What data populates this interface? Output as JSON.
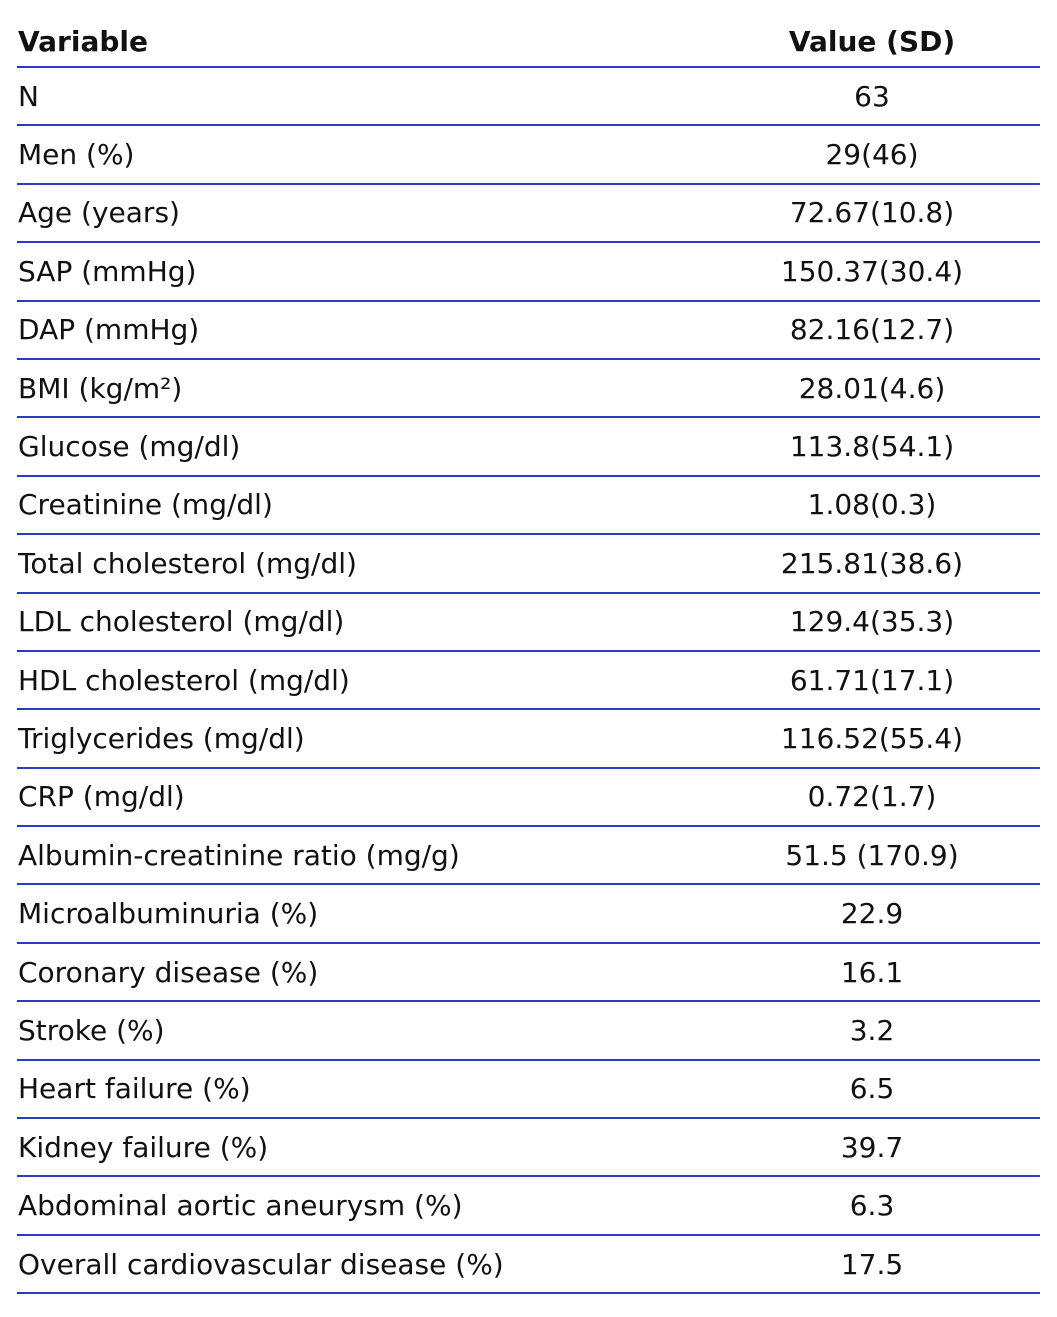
{
  "table": {
    "header": [
      "Variable",
      "Value (SD)"
    ],
    "rows": [
      [
        "N",
        "63"
      ],
      [
        "Men (%)",
        "29(46)"
      ],
      [
        "Age (years)",
        "72.67(10.8)"
      ],
      [
        "SAP (mmHg)",
        "150.37(30.4)"
      ],
      [
        "DAP (mmHg)",
        "82.16(12.7)"
      ],
      [
        "BMI (kg/m²)",
        "28.01(4.6)"
      ],
      [
        "Glucose (mg/dl)",
        "113.8(54.1)"
      ],
      [
        "Creatinine (mg/dl)",
        "1.08(0.3)"
      ],
      [
        "Total cholesterol (mg/dl)",
        "215.81(38.6)"
      ],
      [
        "LDL cholesterol (mg/dl)",
        "129.4(35.3)"
      ],
      [
        "HDL cholesterol (mg/dl)",
        "61.71(17.1)"
      ],
      [
        "Triglycerides (mg/dl)",
        "116.52(55.4)"
      ],
      [
        "CRP (mg/dl)",
        "0.72(1.7)"
      ],
      [
        "Albumin-creatinine ratio (mg/g)",
        "51.5 (170.9)"
      ],
      [
        "Microalbuminuria (%)",
        "22.9"
      ],
      [
        "Coronary disease (%)",
        "16.1"
      ],
      [
        "Stroke (%)",
        "3.2"
      ],
      [
        "Heart failure (%)",
        "6.5"
      ],
      [
        "Kidney failure (%)",
        "39.7"
      ],
      [
        "Abdominal aortic aneurysm (%)",
        "6.3"
      ],
      [
        "Overall cardiovascular disease (%)",
        "17.5"
      ]
    ]
  }
}
